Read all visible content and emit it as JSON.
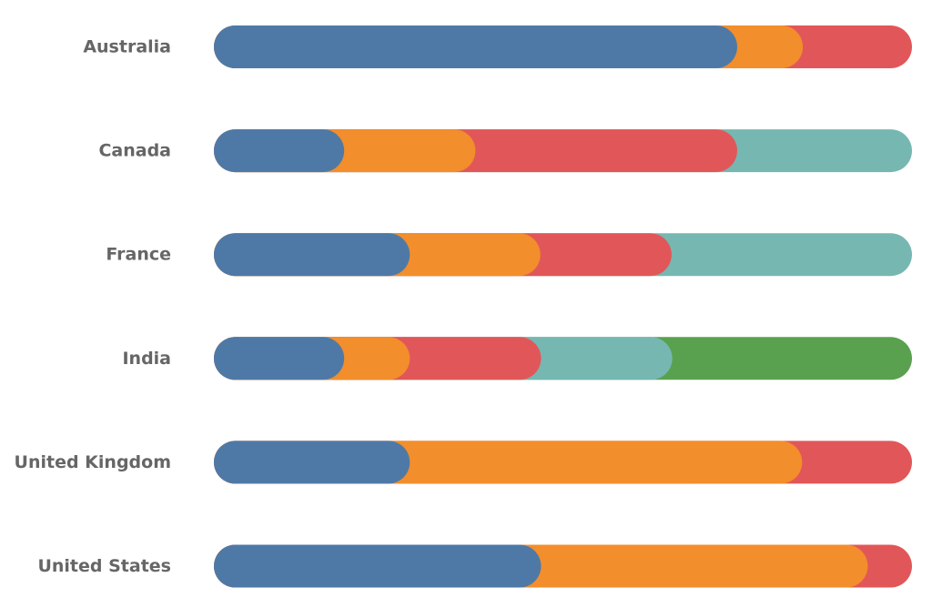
{
  "chart_data": {
    "type": "bar",
    "orientation": "horizontal",
    "stacked": true,
    "normalized_percent": true,
    "title": "",
    "xlabel": "",
    "ylabel": "",
    "xlim": [
      0,
      100
    ],
    "grid": false,
    "legend": "none",
    "categories": [
      "Australia",
      "Canada",
      "France",
      "India",
      "United Kingdom",
      "United States"
    ],
    "series": [
      {
        "color": "#4e79a7",
        "values": [
          71.9,
          15.6,
          25.0,
          15.6,
          25.0,
          43.8
        ]
      },
      {
        "color": "#f28e2b",
        "values": [
          9.4,
          18.8,
          18.7,
          9.4,
          56.2,
          46.8
        ]
      },
      {
        "color": "#e15759",
        "values": [
          18.7,
          37.5,
          18.8,
          18.8,
          18.8,
          9.4
        ]
      },
      {
        "color": "#76b7b2",
        "values": [
          0,
          28.1,
          37.5,
          18.8,
          0,
          0
        ]
      },
      {
        "color": "#59a14f",
        "values": [
          0,
          0,
          0,
          37.4,
          0,
          0
        ]
      }
    ]
  }
}
